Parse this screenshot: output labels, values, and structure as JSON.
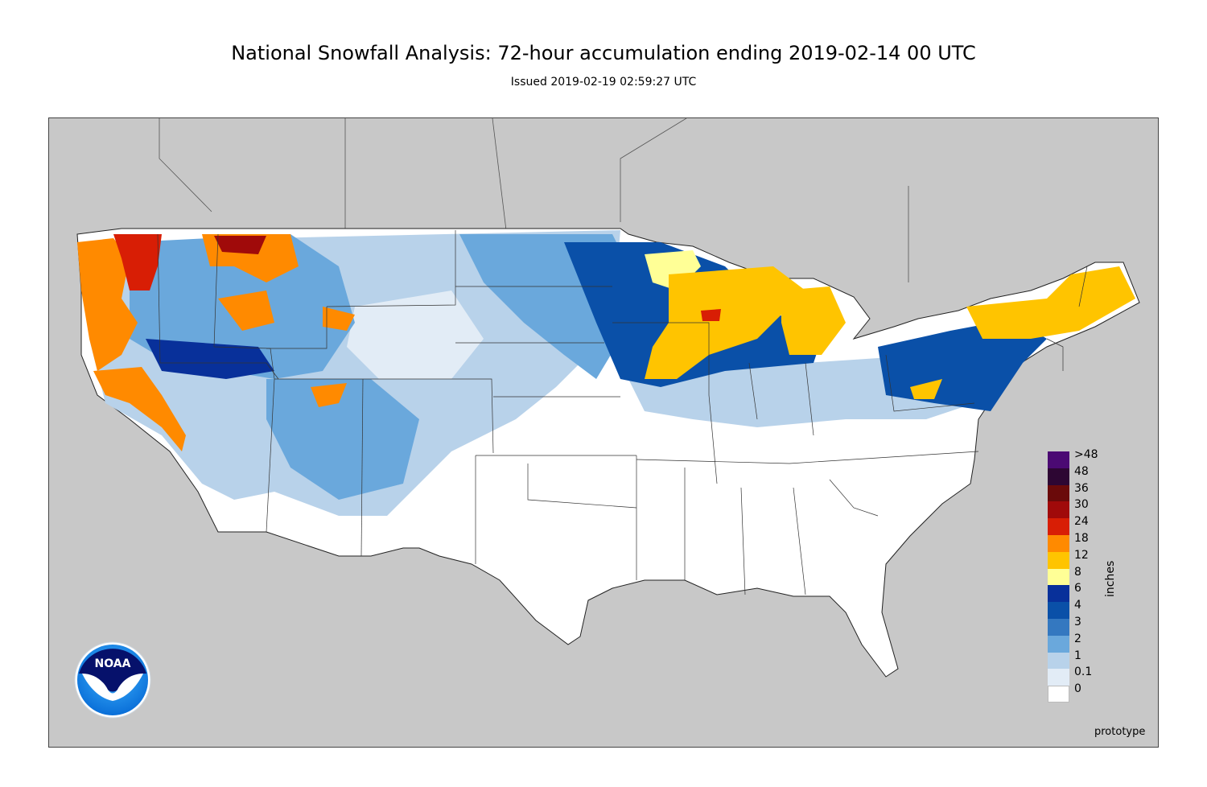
{
  "title": "National Snowfall Analysis: 72-hour accumulation ending 2019-02-14 00 UTC",
  "subtitle": "Issued 2019-02-19 02:59:27 UTC",
  "colorbar": {
    "unit": "inches",
    "bins": [
      {
        "label": ">48",
        "color": "#4b0a73"
      },
      {
        "label": "48",
        "color": "#2d0633"
      },
      {
        "label": "36",
        "color": "#6a0a0a"
      },
      {
        "label": "30",
        "color": "#a00a0a"
      },
      {
        "label": "24",
        "color": "#d81e05"
      },
      {
        "label": "18",
        "color": "#ff8a00"
      },
      {
        "label": "12",
        "color": "#ffc400"
      },
      {
        "label": "8",
        "color": "#ffff96"
      },
      {
        "label": "6",
        "color": "#08309a"
      },
      {
        "label": "4",
        "color": "#0a50a8"
      },
      {
        "label": "3",
        "color": "#3478c0"
      },
      {
        "label": "2",
        "color": "#6aa8dc"
      },
      {
        "label": "1",
        "color": "#b8d2ea"
      },
      {
        "label": "0.1",
        "color": "#e2ecf6"
      },
      {
        "label": "0",
        "color": "#ffffff"
      }
    ]
  },
  "footer_note": "prototype",
  "logo": {
    "text": "NOAA",
    "outer_color": "#0a6fd8",
    "inner_color": "#06116b"
  },
  "map_colors": {
    "background": "#c8c8c8",
    "land": "#ffffff",
    "borders": "#333333"
  }
}
